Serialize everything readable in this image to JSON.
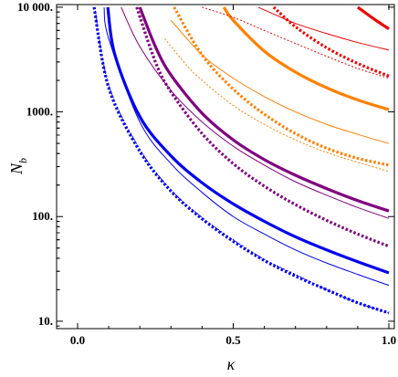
{
  "chart_data": {
    "type": "line",
    "xlabel": "κ",
    "ylabel": "N",
    "ylabel_sub": "b",
    "xlim": [
      0,
      1
    ],
    "ylim": [
      8.5,
      10600
    ],
    "yscale": "log",
    "grid": false,
    "legend": "none",
    "x_ticks": [
      {
        "value": 0.0,
        "label": "0.0"
      },
      {
        "value": 0.5,
        "label": "0.5"
      },
      {
        "value": 1.0,
        "label": "1.0"
      }
    ],
    "y_ticks": [
      {
        "value": 10,
        "label": "10."
      },
      {
        "value": 100,
        "label": "100."
      },
      {
        "value": 1000,
        "label": "1000."
      },
      {
        "value": 10000,
        "label": "10 000."
      }
    ],
    "series": [
      {
        "color": "#0000ee",
        "style": "dashed",
        "weight": "thick",
        "x": [
          0.053,
          0.1,
          0.2,
          0.3,
          0.4,
          0.5,
          0.6,
          0.7,
          0.8,
          0.9,
          1.0
        ],
        "y": [
          10000,
          1700,
          420,
          175,
          95,
          58,
          38,
          27,
          20,
          15,
          12
        ]
      },
      {
        "color": "#0000ee",
        "style": "dashed",
        "weight": "thin",
        "x": [
          0.055,
          0.1,
          0.2,
          0.3,
          0.4,
          0.5,
          0.6,
          0.7,
          0.8,
          0.9,
          1.0
        ],
        "y": [
          10000,
          1800,
          440,
          180,
          98,
          60,
          39,
          28,
          20,
          15,
          12
        ]
      },
      {
        "color": "#0000ee",
        "style": "solid",
        "weight": "thin",
        "x": [
          0.085,
          0.1,
          0.2,
          0.3,
          0.4,
          0.5,
          0.6,
          0.7,
          0.8,
          0.9,
          1.0
        ],
        "y": [
          10000,
          5000,
          800,
          320,
          170,
          100,
          68,
          48,
          36,
          28,
          22
        ]
      },
      {
        "color": "#0000ee",
        "style": "solid",
        "weight": "thick",
        "x": [
          0.097,
          0.12,
          0.2,
          0.3,
          0.4,
          0.5,
          0.6,
          0.7,
          0.8,
          0.9,
          1.0
        ],
        "y": [
          10000,
          3500,
          900,
          380,
          210,
          132,
          90,
          64,
          48,
          37,
          29
        ]
      },
      {
        "color": "#800080",
        "style": "dashed",
        "weight": "thick",
        "x": [
          0.19,
          0.25,
          0.3,
          0.4,
          0.5,
          0.6,
          0.7,
          0.8,
          0.9,
          1.0
        ],
        "y": [
          10000,
          3000,
          1550,
          620,
          320,
          195,
          130,
          92,
          68,
          52
        ]
      },
      {
        "color": "#800080",
        "style": "solid",
        "weight": "thin",
        "x": [
          0.14,
          0.2,
          0.3,
          0.4,
          0.5,
          0.6,
          0.7,
          0.8,
          0.9,
          1.0
        ],
        "y": [
          10000,
          4200,
          1600,
          800,
          470,
          310,
          215,
          160,
          122,
          96
        ]
      },
      {
        "color": "#800080",
        "style": "solid",
        "weight": "thick",
        "x": [
          0.2,
          0.25,
          0.3,
          0.4,
          0.5,
          0.6,
          0.7,
          0.8,
          0.9,
          1.0
        ],
        "y": [
          10000,
          4200,
          2250,
          970,
          540,
          350,
          248,
          185,
          142,
          113
        ]
      },
      {
        "color": "#ff8000",
        "style": "dashed",
        "weight": "thick",
        "x": [
          0.31,
          0.4,
          0.5,
          0.6,
          0.7,
          0.8,
          0.9,
          1.0
        ],
        "y": [
          10000,
          3500,
          1650,
          950,
          620,
          450,
          360,
          310
        ]
      },
      {
        "color": "#ff8000",
        "style": "dashed",
        "weight": "thin",
        "x": [
          0.28,
          0.35,
          0.4,
          0.5,
          0.6,
          0.7,
          0.8,
          0.9,
          1.0
        ],
        "y": [
          5000,
          2800,
          2000,
          1150,
          760,
          540,
          410,
          330,
          270
        ]
      },
      {
        "color": "#ff8000",
        "style": "solid",
        "weight": "thin",
        "x": [
          0.3,
          0.4,
          0.5,
          0.6,
          0.7,
          0.8,
          0.9,
          1.0
        ],
        "y": [
          7500,
          3500,
          2100,
          1400,
          1000,
          760,
          610,
          500
        ]
      },
      {
        "color": "#ff8000",
        "style": "solid",
        "weight": "thick",
        "x": [
          0.47,
          0.5,
          0.6,
          0.7,
          0.8,
          0.9,
          1.0
        ],
        "y": [
          10000,
          7500,
          3800,
          2400,
          1700,
          1300,
          1050
        ]
      },
      {
        "color": "#ee0000",
        "style": "dashed",
        "weight": "thick",
        "x": [
          0.63,
          0.7,
          0.8,
          0.9,
          1.0
        ],
        "y": [
          10000,
          6500,
          4100,
          2900,
          2200
        ]
      },
      {
        "color": "#ee0000",
        "style": "dashed",
        "weight": "thin",
        "x": [
          0.4,
          0.5,
          0.6,
          0.7,
          0.8,
          0.9,
          1.0
        ],
        "y": [
          10000,
          8000,
          6000,
          4500,
          3400,
          2600,
          2100
        ]
      },
      {
        "color": "#ee0000",
        "style": "solid",
        "weight": "thin",
        "x": [
          0.58,
          0.65,
          0.7,
          0.8,
          0.9,
          1.0
        ],
        "y": [
          10000,
          8100,
          7000,
          5600,
          4600,
          3900
        ]
      },
      {
        "color": "#ee0000",
        "style": "solid",
        "weight": "thick",
        "x": [
          0.9,
          0.95,
          1.0
        ],
        "y": [
          10000,
          7800,
          6200
        ]
      }
    ]
  }
}
